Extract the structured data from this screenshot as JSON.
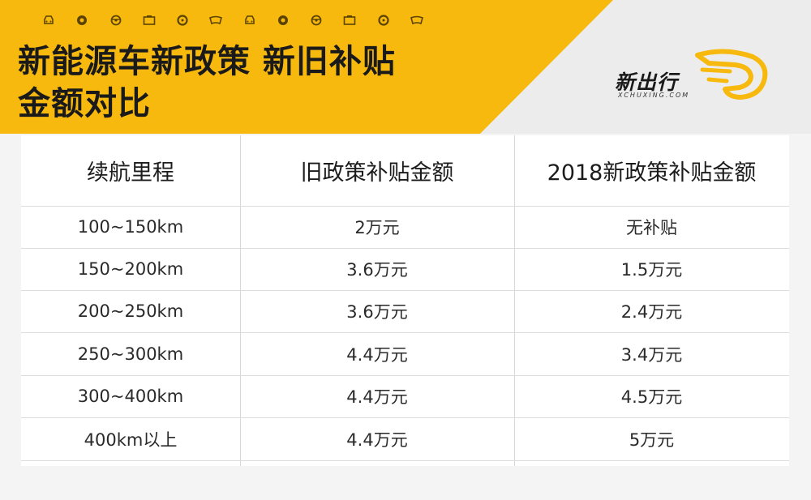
{
  "header": {
    "title_line1": "新能源车新政策  新旧补贴",
    "title_line2": "金额对比",
    "decor_icons": [
      "car-front-icon",
      "wheel-icon",
      "steering-wheel-icon",
      "battery-icon",
      "tire-icon",
      "windshield-icon",
      "car-front-icon",
      "wheel-icon",
      "steering-wheel-icon",
      "battery-icon",
      "tire-icon",
      "windshield-icon"
    ],
    "colors": {
      "accent": "#f7b90e",
      "header_gray": "#ececec"
    }
  },
  "logo": {
    "name": "新出行",
    "url_text": "XCHUXING.COM"
  },
  "table": {
    "headers": [
      "续航里程",
      "旧政策补贴金额",
      "2018新政策补贴金额"
    ],
    "rows": [
      [
        "100~150km",
        "2万元",
        "无补贴"
      ],
      [
        "150~200km",
        "3.6万元",
        "1.5万元"
      ],
      [
        "200~250km",
        "3.6万元",
        "2.4万元"
      ],
      [
        "250~300km",
        "4.4万元",
        "3.4万元"
      ],
      [
        "300~400km",
        "4.4万元",
        "4.5万元"
      ],
      [
        "400km以上",
        "4.4万元",
        "5万元"
      ]
    ]
  }
}
